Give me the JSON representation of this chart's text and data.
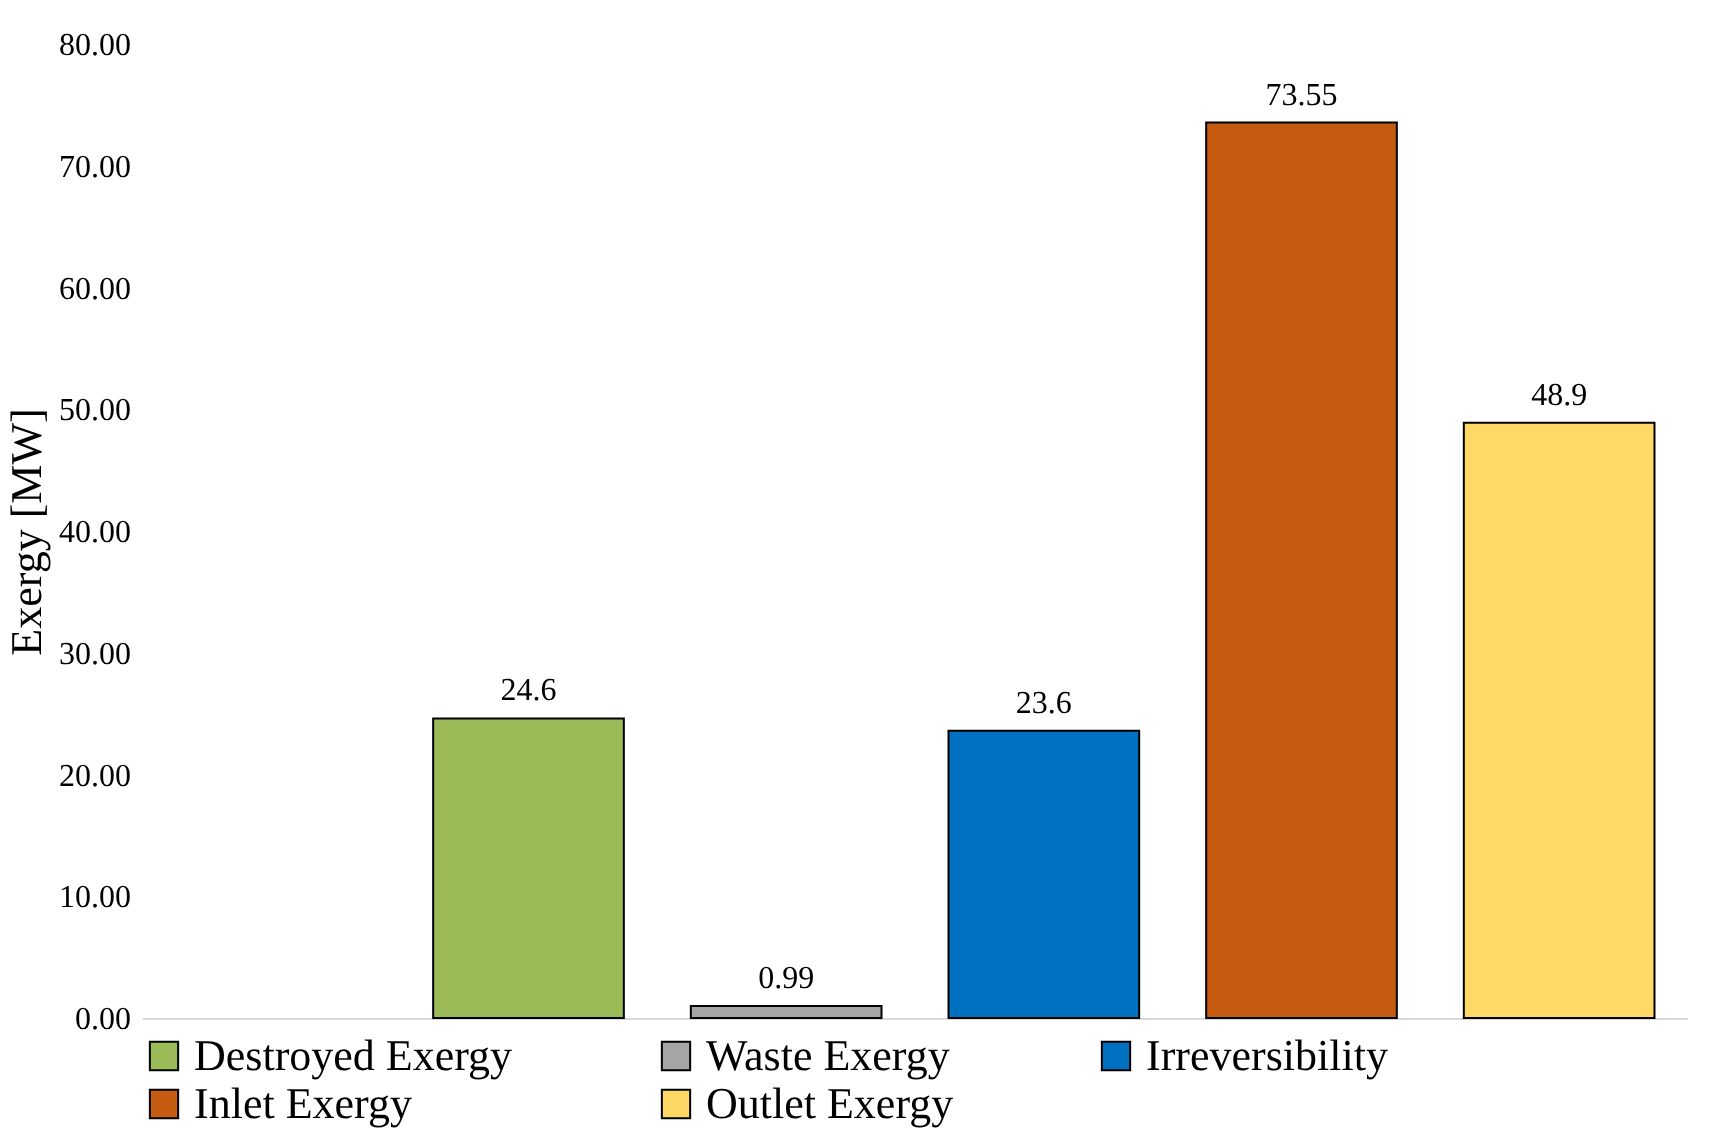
{
  "chart_data": {
    "type": "bar",
    "ylabel": "Exergy [MW]",
    "categories": [
      null,
      null,
      null,
      null,
      null,
      null
    ],
    "series": [
      {
        "name": "Destroyed Exergy",
        "color": "#9bbb59",
        "values": [
          null,
          24.6,
          null,
          null,
          null,
          null
        ]
      },
      {
        "name": "Waste Exergy",
        "color": "#a6a6a6",
        "values": [
          null,
          null,
          0.99,
          null,
          null,
          null
        ]
      },
      {
        "name": "Irreversibility",
        "color": "#0070c0",
        "values": [
          null,
          null,
          null,
          23.6,
          null,
          null
        ]
      },
      {
        "name": "Inlet Exergy",
        "color": "#c55a11",
        "values": [
          null,
          null,
          null,
          null,
          73.55,
          null
        ]
      },
      {
        "name": "Outlet Exergy",
        "color": "#ffd966",
        "values": [
          null,
          null,
          null,
          null,
          null,
          48.9
        ]
      }
    ],
    "ylim": [
      0,
      80
    ],
    "yticks": [
      {
        "value": 0,
        "label": "0.00"
      },
      {
        "value": 10,
        "label": "10.00"
      },
      {
        "value": 20,
        "label": "20.00"
      },
      {
        "value": 30,
        "label": "30.00"
      },
      {
        "value": 40,
        "label": "40.00"
      },
      {
        "value": 50,
        "label": "50.00"
      },
      {
        "value": 60,
        "label": "60.00"
      },
      {
        "value": 70,
        "label": "70.00"
      },
      {
        "value": 80,
        "label": "80.00"
      }
    ],
    "data_labels": true,
    "legend": "bottom",
    "grid": false
  }
}
